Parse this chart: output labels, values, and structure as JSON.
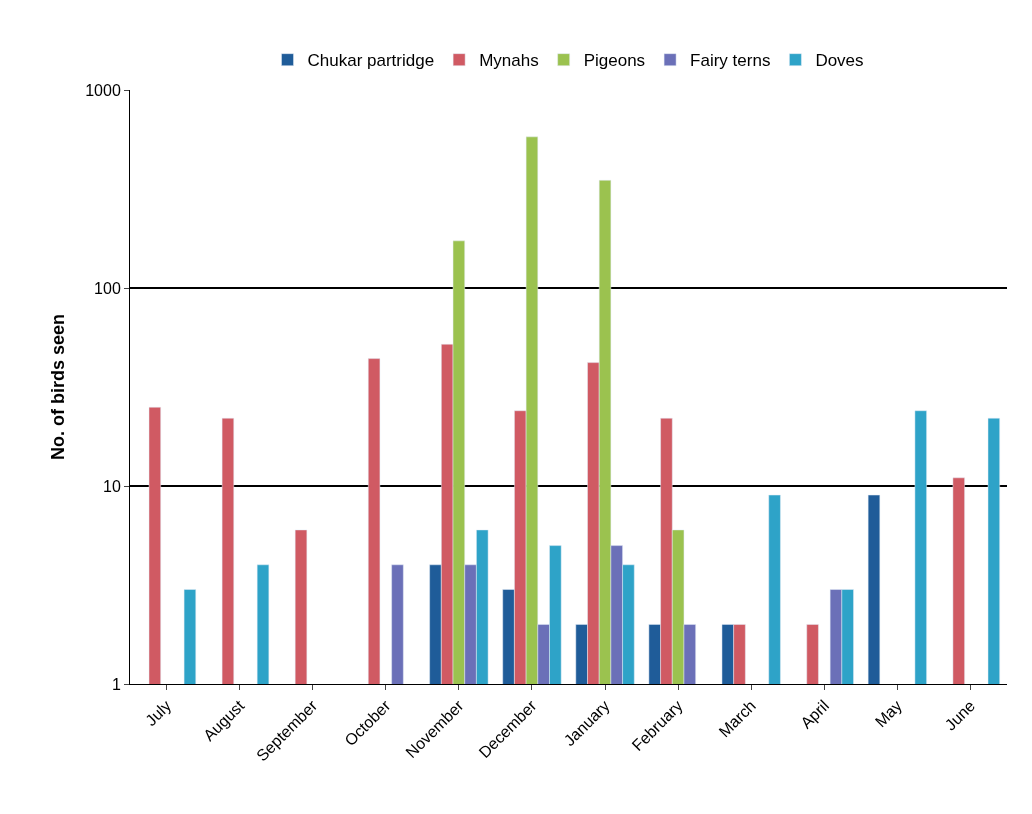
{
  "chart_data": {
    "type": "bar",
    "ylabel": "No. of birds seen",
    "log": true,
    "ylim": [
      1,
      1000
    ],
    "yticks": [
      1,
      10,
      100,
      1000
    ],
    "grid": "y",
    "legend": "top",
    "categories": [
      "July",
      "August",
      "September",
      "October",
      "November",
      "December",
      "January",
      "February",
      "March",
      "April",
      "May",
      "June"
    ],
    "series": [
      {
        "name": "Chukar partridge",
        "color": "#1f5c99",
        "values": [
          null,
          null,
          null,
          null,
          4,
          3,
          2,
          2,
          2,
          null,
          9,
          null
        ]
      },
      {
        "name": "Mynahs",
        "color": "#d05a63",
        "values": [
          25,
          22,
          6,
          44,
          52,
          24,
          42,
          22,
          2,
          2,
          null,
          11
        ]
      },
      {
        "name": "Pigeons",
        "color": "#9bc24f",
        "values": [
          null,
          null,
          null,
          null,
          173,
          580,
          350,
          6,
          null,
          null,
          null,
          null
        ]
      },
      {
        "name": "Fairy terns",
        "color": "#6b70b8",
        "values": [
          null,
          null,
          null,
          4,
          4,
          2,
          5,
          2,
          null,
          3,
          null,
          null
        ]
      },
      {
        "name": "Doves",
        "color": "#2ea3c8",
        "values": [
          3,
          4,
          null,
          null,
          6,
          5,
          4,
          null,
          9,
          3,
          24,
          22
        ]
      }
    ]
  }
}
